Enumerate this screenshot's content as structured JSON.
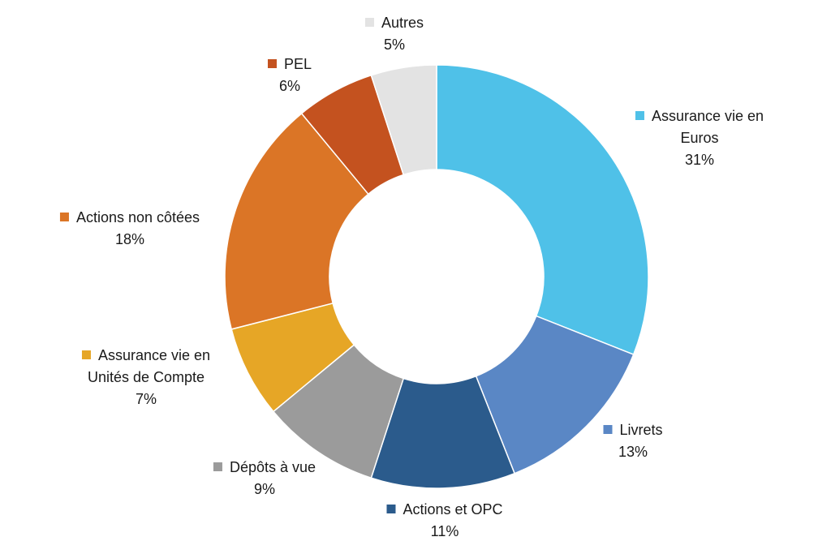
{
  "chart_data": {
    "type": "pie",
    "donut": true,
    "title": "",
    "legend": "labels beside slices",
    "categories": [
      "Assurance vie en Euros",
      "Livrets",
      "Actions et OPC",
      "Dépôts à vue",
      "Assurance vie en Unités de Compte",
      "Actions non côtées",
      "PEL",
      "Autres"
    ],
    "values": [
      31,
      13,
      11,
      9,
      7,
      18,
      6,
      5
    ],
    "value_labels": [
      "31%",
      "13%",
      "11%",
      "9%",
      "7%",
      "18%",
      "6%",
      "5%"
    ],
    "colors": [
      "#4fc1e8",
      "#5a87c5",
      "#2b5b8c",
      "#9b9b9b",
      "#e6a626",
      "#db7526",
      "#c4521f",
      "#e3e3e3"
    ]
  }
}
